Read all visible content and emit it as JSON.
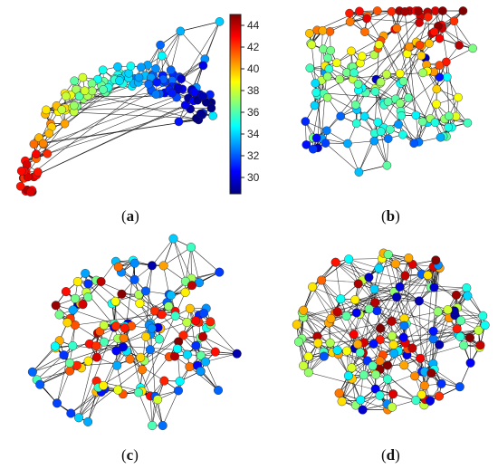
{
  "colorbar": {
    "ticks": [
      30,
      32,
      34,
      36,
      38,
      40,
      42,
      44
    ],
    "range": [
      28.5,
      45
    ],
    "colormap": "jet"
  },
  "panels": [
    {
      "id": "a",
      "label": "a",
      "node_count": 150,
      "layout": "arc"
    },
    {
      "id": "b",
      "label": "b",
      "node_count": 150,
      "layout": "wedge"
    },
    {
      "id": "c",
      "label": "c",
      "node_count": 150,
      "layout": "blob"
    },
    {
      "id": "d",
      "label": "d",
      "node_count": 150,
      "layout": "disc"
    }
  ],
  "style": {
    "edge_color": "#111111",
    "node_stroke": "#222222"
  }
}
